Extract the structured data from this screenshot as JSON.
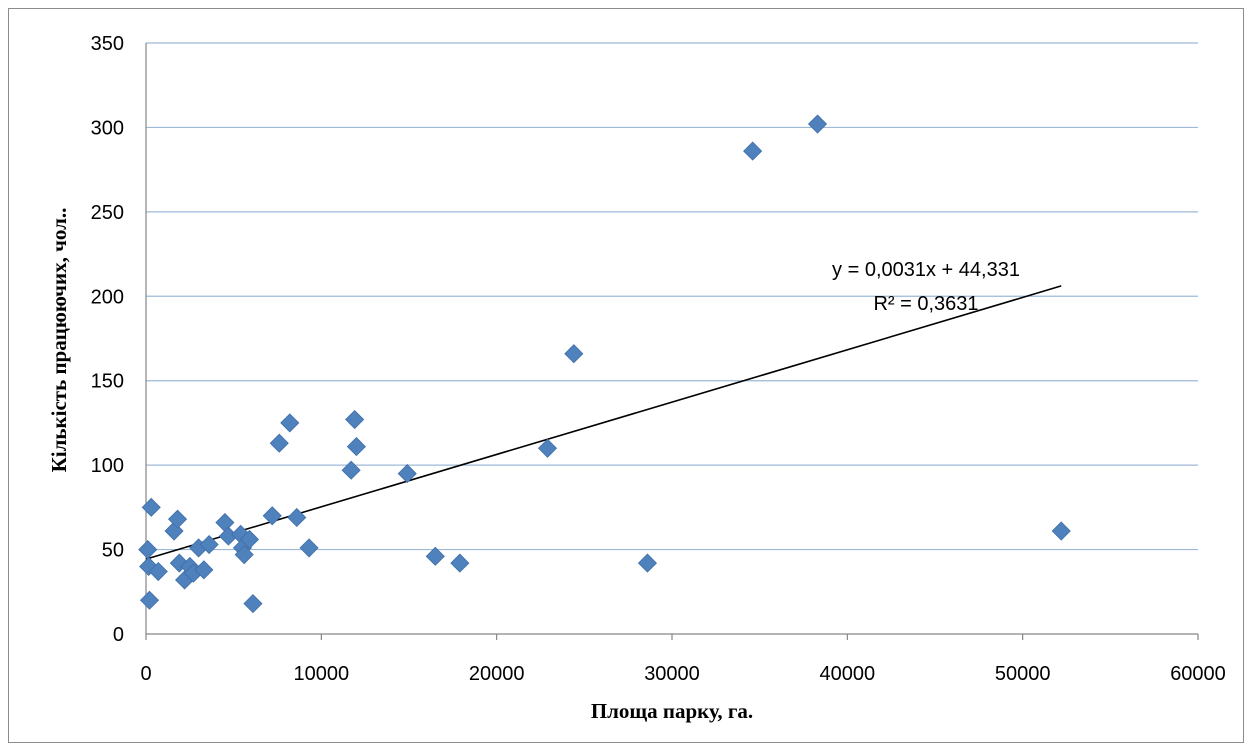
{
  "chart_data": {
    "type": "scatter",
    "title": "",
    "xlabel": "Площа парку, га.",
    "ylabel": "Кількість працюючих, чол..",
    "xlim": [
      0,
      60000
    ],
    "ylim": [
      0,
      350
    ],
    "x_ticks": [
      "0",
      "10000",
      "20000",
      "30000",
      "40000",
      "50000",
      "60000"
    ],
    "y_ticks": [
      "0",
      "50",
      "100",
      "150",
      "200",
      "250",
      "300",
      "350"
    ],
    "grid": "horizontal",
    "legend": "none",
    "marker": "diamond",
    "series_color": "#4f81bd",
    "points": [
      [
        100,
        50
      ],
      [
        150,
        40
      ],
      [
        200,
        20
      ],
      [
        300,
        75
      ],
      [
        700,
        37
      ],
      [
        1600,
        61
      ],
      [
        1800,
        68
      ],
      [
        1900,
        42
      ],
      [
        2200,
        32
      ],
      [
        2500,
        40
      ],
      [
        2700,
        36
      ],
      [
        3000,
        51
      ],
      [
        3300,
        38
      ],
      [
        3600,
        53
      ],
      [
        4500,
        66
      ],
      [
        4700,
        58
      ],
      [
        5400,
        59
      ],
      [
        5500,
        51
      ],
      [
        5600,
        47
      ],
      [
        5900,
        56
      ],
      [
        6100,
        18
      ],
      [
        7200,
        70
      ],
      [
        7600,
        113
      ],
      [
        8200,
        125
      ],
      [
        8600,
        69
      ],
      [
        9300,
        51
      ],
      [
        11700,
        97
      ],
      [
        11900,
        127
      ],
      [
        12000,
        111
      ],
      [
        14900,
        95
      ],
      [
        16500,
        46
      ],
      [
        17900,
        42
      ],
      [
        22900,
        110
      ],
      [
        24400,
        166
      ],
      [
        28600,
        42
      ],
      [
        34600,
        286
      ],
      [
        38300,
        302
      ],
      [
        52200,
        61
      ]
    ],
    "trendline": {
      "type": "linear",
      "slope": 0.0031,
      "intercept": 44.331,
      "x_range": [
        0,
        52200
      ],
      "equation": "y = 0,0031x + 44,331",
      "r_squared": "R² = 0,3631"
    }
  }
}
